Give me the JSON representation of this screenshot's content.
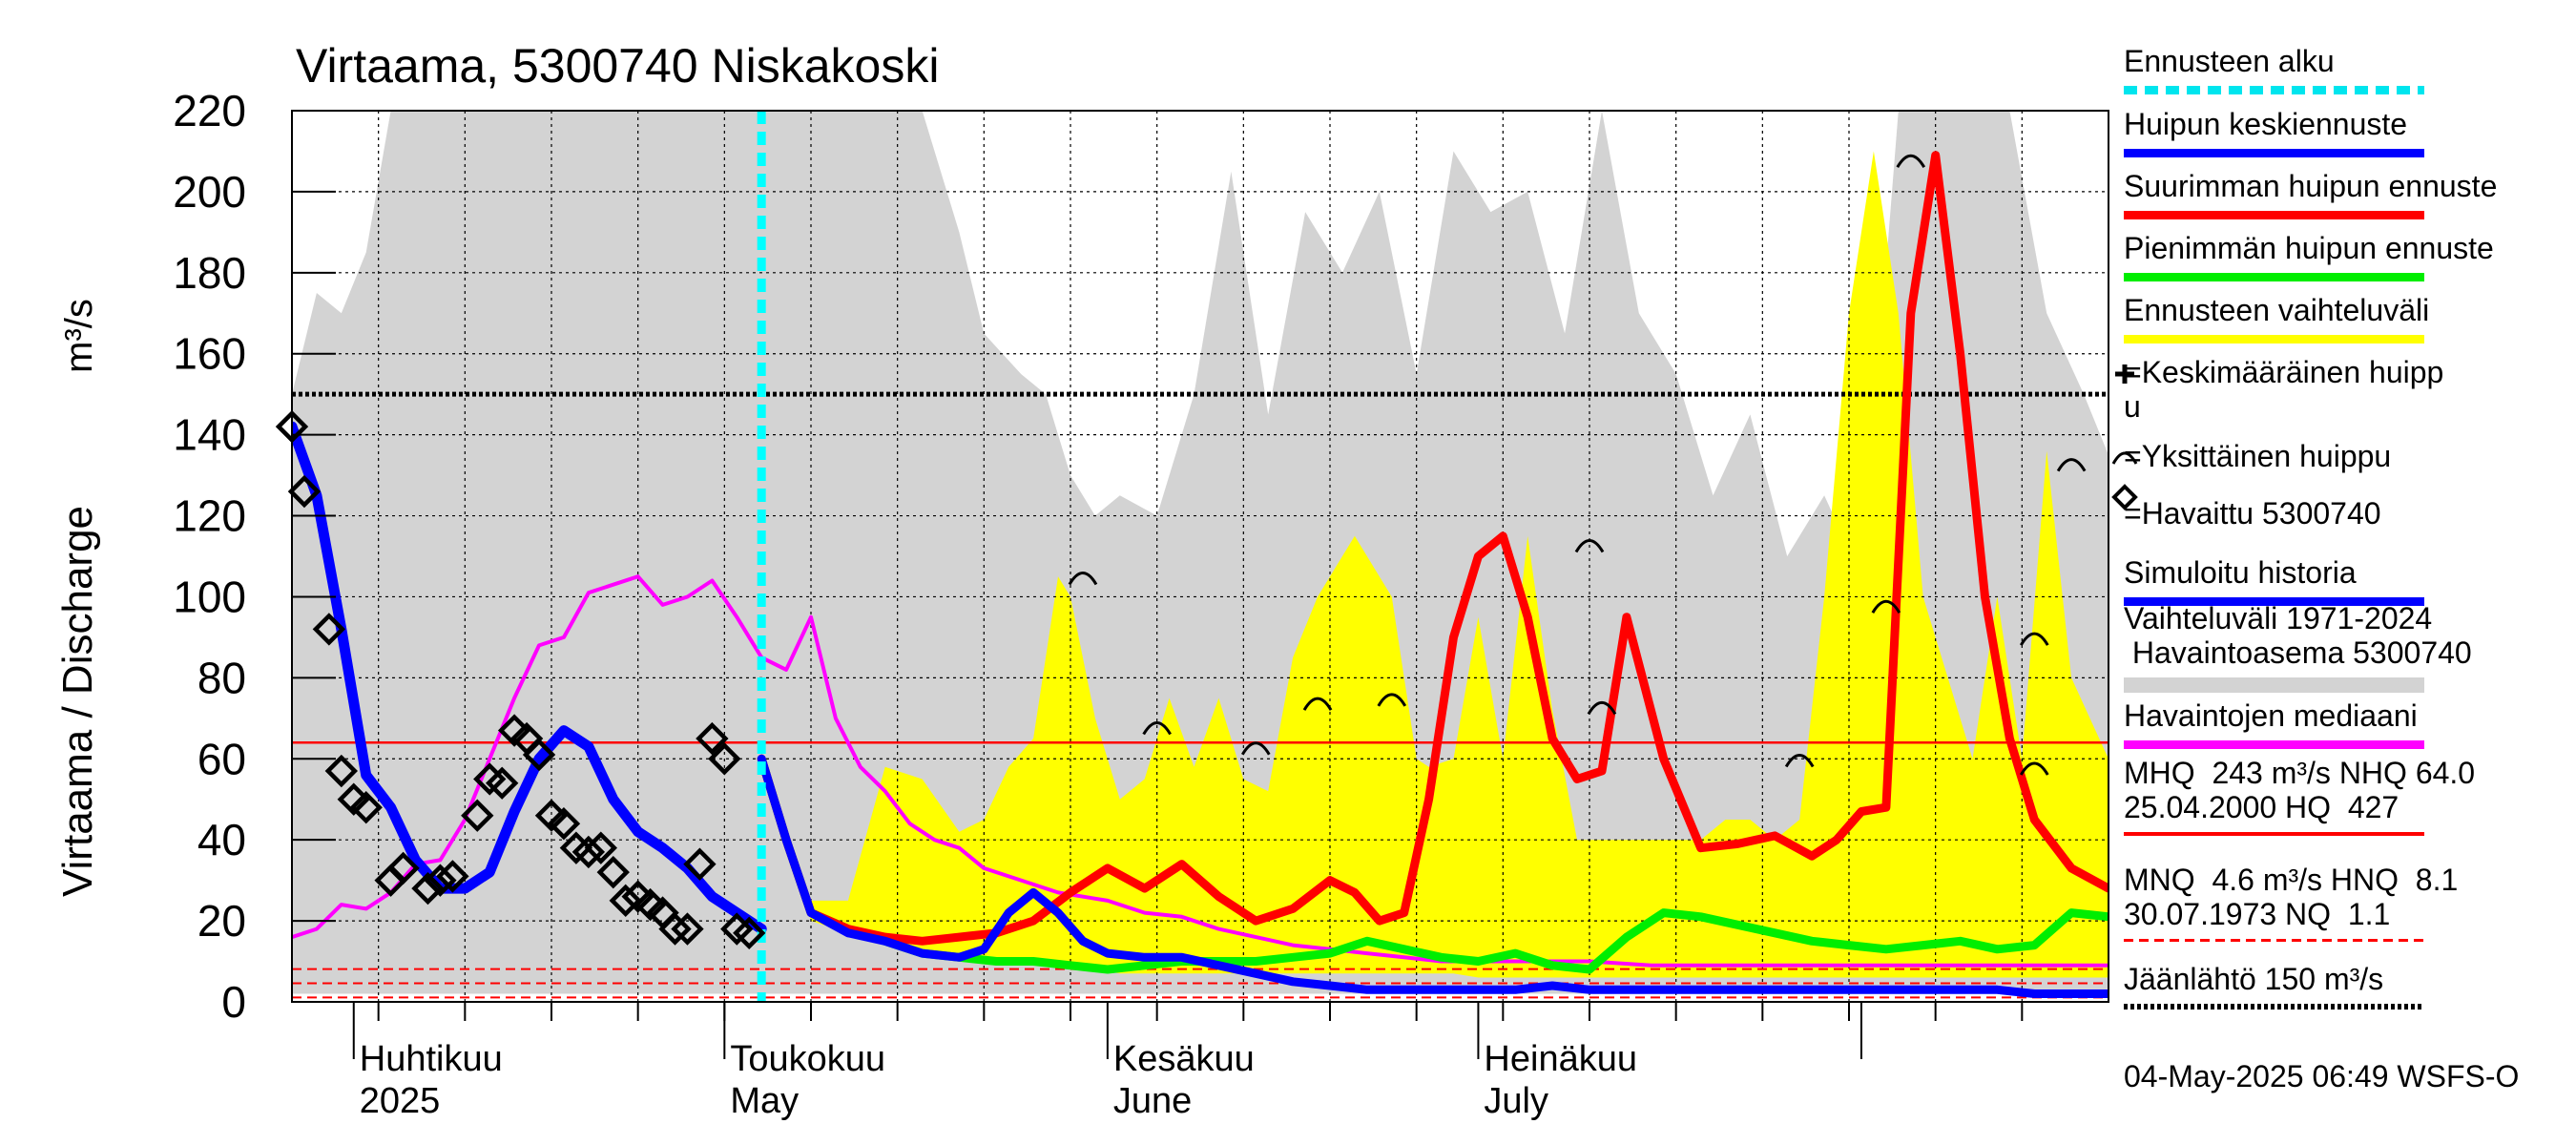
{
  "chart_data": {
    "type": "line",
    "title": "Virtaama, 5300740 Niskakoski",
    "ylabel": "Virtaama / Discharge",
    "yunit": "m³/s",
    "ylim": [
      0,
      220
    ],
    "yticks": [
      0,
      20,
      40,
      60,
      80,
      100,
      120,
      140,
      160,
      180,
      200,
      220
    ],
    "xlim": [
      "2025-03-27",
      "2025-08-21"
    ],
    "month_labels": [
      {
        "date": "2025-04-01",
        "fi": "Huhtikuu",
        "en": "2025"
      },
      {
        "date": "2025-05-01",
        "fi": "Toukokuu",
        "en": "May"
      },
      {
        "date": "2025-06-01",
        "fi": "Kesäkuu",
        "en": "June"
      },
      {
        "date": "2025-07-01",
        "fi": "Heinäkuu",
        "en": "July"
      }
    ],
    "forecast_start": "2025-05-04",
    "hline_jaanlahto": 150,
    "hline_mhq": 64.0,
    "hline_mnq": 8.1,
    "colors": {
      "history_band": "#d3d3d3",
      "forecast_band": "#ffff00",
      "mean_forecast": "#0000ff",
      "max_forecast": "#ff0000",
      "min_forecast": "#00ee00",
      "median": "#ff00ff",
      "simulated": "#0000ff",
      "forecast_start": "#00ffff",
      "reference_lines": "#ff0000"
    },
    "series": [
      {
        "name": "Vaihteluväli 1971-2024",
        "kind": "band",
        "x": [
          "2025-03-27",
          "2025-03-29",
          "2025-03-31",
          "2025-04-02",
          "2025-04-04",
          "2025-04-07",
          "2025-04-10",
          "2025-04-15",
          "2025-04-20",
          "2025-04-25",
          "2025-04-30",
          "2025-05-03",
          "2025-05-06",
          "2025-05-09",
          "2025-05-12",
          "2025-05-15",
          "2025-05-17",
          "2025-05-20",
          "2025-05-22",
          "2025-05-25",
          "2025-05-27",
          "2025-05-29",
          "2025-05-31",
          "2025-06-02",
          "2025-06-05",
          "2025-06-08",
          "2025-06-11",
          "2025-06-14",
          "2025-06-17",
          "2025-06-20",
          "2025-06-23",
          "2025-06-26",
          "2025-06-29",
          "2025-07-02",
          "2025-07-05",
          "2025-07-08",
          "2025-07-11",
          "2025-07-14",
          "2025-07-17",
          "2025-07-20",
          "2025-07-23",
          "2025-07-26",
          "2025-07-29",
          "2025-08-01",
          "2025-08-04",
          "2025-08-07",
          "2025-08-10",
          "2025-08-13",
          "2025-08-16",
          "2025-08-19",
          "2025-08-21"
        ],
        "upper": [
          150,
          175,
          170,
          185,
          220,
          220,
          220,
          220,
          220,
          220,
          220,
          220,
          220,
          220,
          220,
          220,
          220,
          190,
          165,
          155,
          150,
          130,
          120,
          125,
          120,
          150,
          205,
          145,
          195,
          180,
          200,
          155,
          210,
          195,
          200,
          165,
          220,
          170,
          155,
          125,
          145,
          110,
          125,
          105,
          220,
          220,
          220,
          220,
          170,
          150,
          135
        ],
        "lower": [
          2,
          2,
          2,
          2,
          2,
          2,
          2,
          2,
          2,
          2,
          2,
          2,
          2,
          2,
          2,
          2,
          2,
          2,
          2,
          2,
          2,
          2,
          2,
          2,
          2,
          2,
          2,
          2,
          2,
          2,
          2,
          2,
          2,
          2,
          2,
          2,
          2,
          2,
          2,
          2,
          2,
          2,
          2,
          2,
          2,
          2,
          2,
          2,
          2,
          2,
          2
        ]
      },
      {
        "name": "Ennusteen vaihteluväli",
        "kind": "band",
        "x": [
          "2025-05-04",
          "2025-05-08",
          "2025-05-11",
          "2025-05-14",
          "2025-05-17",
          "2025-05-20",
          "2025-05-22",
          "2025-05-24",
          "2025-05-26",
          "2025-05-28",
          "2025-05-29",
          "2025-05-31",
          "2025-06-02",
          "2025-06-04",
          "2025-06-06",
          "2025-06-08",
          "2025-06-10",
          "2025-06-12",
          "2025-06-14",
          "2025-06-16",
          "2025-06-18",
          "2025-06-21",
          "2025-06-24",
          "2025-06-26",
          "2025-06-27",
          "2025-06-29",
          "2025-07-01",
          "2025-07-03",
          "2025-07-05",
          "2025-07-07",
          "2025-07-09",
          "2025-07-11",
          "2025-07-13",
          "2025-07-15",
          "2025-07-17",
          "2025-07-19",
          "2025-07-21",
          "2025-07-23",
          "2025-07-25",
          "2025-07-27",
          "2025-07-29",
          "2025-07-31",
          "2025-08-02",
          "2025-08-04",
          "2025-08-06",
          "2025-08-08",
          "2025-08-10",
          "2025-08-12",
          "2025-08-14",
          "2025-08-16",
          "2025-08-18",
          "2025-08-21"
        ],
        "upper": [
          60,
          25,
          25,
          58,
          55,
          42,
          45,
          58,
          65,
          105,
          100,
          70,
          50,
          55,
          75,
          58,
          75,
          55,
          52,
          85,
          100,
          115,
          100,
          60,
          58,
          60,
          95,
          60,
          115,
          72,
          40,
          40,
          40,
          40,
          40,
          40,
          45,
          45,
          40,
          45,
          100,
          170,
          210,
          170,
          100,
          80,
          60,
          100,
          60,
          136,
          80,
          60
        ],
        "lower": [
          60,
          20,
          17,
          14,
          12,
          11,
          10,
          9,
          9,
          9,
          8,
          8,
          7,
          7,
          7,
          7,
          7,
          7,
          7,
          7,
          7,
          7,
          7,
          7,
          7,
          7,
          6,
          6,
          6,
          6,
          6,
          6,
          6,
          6,
          6,
          6,
          6,
          6,
          6,
          6,
          6,
          6,
          6,
          6,
          6,
          6,
          6,
          6,
          6,
          6,
          6,
          6
        ]
      },
      {
        "name": "Havaintojen mediaani",
        "kind": "line",
        "x": [
          "2025-03-27",
          "2025-03-29",
          "2025-03-31",
          "2025-04-02",
          "2025-04-04",
          "2025-04-06",
          "2025-04-08",
          "2025-04-10",
          "2025-04-12",
          "2025-04-14",
          "2025-04-16",
          "2025-04-18",
          "2025-04-20",
          "2025-04-22",
          "2025-04-24",
          "2025-04-26",
          "2025-04-28",
          "2025-04-30",
          "2025-05-02",
          "2025-05-04",
          "2025-05-06",
          "2025-05-08",
          "2025-05-10",
          "2025-05-12",
          "2025-05-14",
          "2025-05-16",
          "2025-05-18",
          "2025-05-20",
          "2025-05-22",
          "2025-05-25",
          "2025-05-28",
          "2025-06-01",
          "2025-06-04",
          "2025-06-07",
          "2025-06-10",
          "2025-06-13",
          "2025-06-16",
          "2025-06-19",
          "2025-06-22",
          "2025-06-25",
          "2025-06-28",
          "2025-07-01",
          "2025-07-05",
          "2025-07-10",
          "2025-07-15",
          "2025-07-20",
          "2025-07-25",
          "2025-07-30",
          "2025-08-05",
          "2025-08-12",
          "2025-08-21"
        ],
        "values": [
          16,
          18,
          24,
          23,
          27,
          34,
          35,
          45,
          60,
          75,
          88,
          90,
          101,
          103,
          105,
          98,
          100,
          104,
          95,
          85,
          82,
          95,
          70,
          58,
          52,
          44,
          40,
          38,
          33,
          30,
          27,
          25,
          22,
          21,
          18,
          16,
          14,
          13,
          12,
          11,
          10,
          10,
          10,
          10,
          9,
          9,
          9,
          9,
          9,
          9,
          9
        ]
      },
      {
        "name": "Pienimmän huipun ennuste",
        "kind": "line",
        "x": [
          "2025-05-04",
          "2025-05-06",
          "2025-05-08",
          "2025-05-11",
          "2025-05-14",
          "2025-05-17",
          "2025-05-20",
          "2025-05-23",
          "2025-05-26",
          "2025-05-29",
          "2025-06-01",
          "2025-06-04",
          "2025-06-07",
          "2025-06-10",
          "2025-06-13",
          "2025-06-16",
          "2025-06-19",
          "2025-06-22",
          "2025-06-25",
          "2025-06-28",
          "2025-07-01",
          "2025-07-04",
          "2025-07-07",
          "2025-07-10",
          "2025-07-13",
          "2025-07-16",
          "2025-07-19",
          "2025-07-22",
          "2025-07-25",
          "2025-07-28",
          "2025-07-31",
          "2025-08-03",
          "2025-08-06",
          "2025-08-09",
          "2025-08-12",
          "2025-08-15",
          "2025-08-18",
          "2025-08-21"
        ],
        "values": [
          60,
          40,
          22,
          18,
          15,
          12,
          11,
          10,
          10,
          9,
          8,
          9,
          10,
          10,
          10,
          11,
          12,
          15,
          13,
          11,
          10,
          12,
          9,
          8,
          16,
          22,
          21,
          19,
          17,
          15,
          14,
          13,
          14,
          15,
          13,
          14,
          22,
          21
        ]
      },
      {
        "name": "Suurimman huipun ennuste",
        "kind": "line",
        "x": [
          "2025-05-04",
          "2025-05-06",
          "2025-05-08",
          "2025-05-11",
          "2025-05-14",
          "2025-05-17",
          "2025-05-20",
          "2025-05-23",
          "2025-05-26",
          "2025-05-29",
          "2025-06-01",
          "2025-06-04",
          "2025-06-07",
          "2025-06-10",
          "2025-06-13",
          "2025-06-16",
          "2025-06-19",
          "2025-06-21",
          "2025-06-23",
          "2025-06-25",
          "2025-06-27",
          "2025-06-29",
          "2025-07-01",
          "2025-07-03",
          "2025-07-05",
          "2025-07-07",
          "2025-07-09",
          "2025-07-11",
          "2025-07-13",
          "2025-07-16",
          "2025-07-19",
          "2025-07-22",
          "2025-07-25",
          "2025-07-28",
          "2025-07-30",
          "2025-08-01",
          "2025-08-03",
          "2025-08-05",
          "2025-08-07",
          "2025-08-09",
          "2025-08-11",
          "2025-08-13",
          "2025-08-15",
          "2025-08-18",
          "2025-08-21"
        ],
        "values": [
          60,
          40,
          22,
          18,
          16,
          15,
          16,
          17,
          20,
          27,
          33,
          28,
          34,
          26,
          20,
          23,
          30,
          27,
          20,
          22,
          50,
          90,
          110,
          115,
          95,
          65,
          55,
          57,
          95,
          60,
          38,
          39,
          41,
          36,
          40,
          47,
          48,
          170,
          209,
          160,
          100,
          65,
          45,
          33,
          28
        ]
      },
      {
        "name": "Huipun keskiennuste",
        "kind": "line",
        "x": [
          "2025-05-04",
          "2025-05-06",
          "2025-05-08",
          "2025-05-11",
          "2025-05-14",
          "2025-05-17",
          "2025-05-20",
          "2025-05-22",
          "2025-05-24",
          "2025-05-26",
          "2025-05-28",
          "2025-05-30",
          "2025-06-01",
          "2025-06-04",
          "2025-06-07",
          "2025-06-10",
          "2025-06-13",
          "2025-06-16",
          "2025-06-19",
          "2025-06-22",
          "2025-06-25",
          "2025-06-28",
          "2025-07-01",
          "2025-07-04",
          "2025-07-07",
          "2025-07-10",
          "2025-07-13",
          "2025-07-16",
          "2025-07-19",
          "2025-07-22",
          "2025-07-25",
          "2025-07-28",
          "2025-07-31",
          "2025-08-03",
          "2025-08-06",
          "2025-08-09",
          "2025-08-12",
          "2025-08-15",
          "2025-08-18",
          "2025-08-21"
        ],
        "values": [
          60,
          40,
          22,
          17,
          15,
          12,
          11,
          13,
          22,
          27,
          22,
          15,
          12,
          11,
          11,
          9,
          7,
          5,
          4,
          3,
          3,
          3,
          3,
          3,
          4,
          3,
          3,
          3,
          3,
          3,
          3,
          3,
          3,
          3,
          3,
          3,
          3,
          2,
          2,
          2
        ]
      },
      {
        "name": "Simuloitu historia",
        "kind": "line",
        "x": [
          "2025-03-27",
          "2025-03-29",
          "2025-03-31",
          "2025-04-02",
          "2025-04-04",
          "2025-04-06",
          "2025-04-08",
          "2025-04-10",
          "2025-04-12",
          "2025-04-14",
          "2025-04-16",
          "2025-04-18",
          "2025-04-20",
          "2025-04-22",
          "2025-04-24",
          "2025-04-26",
          "2025-04-28",
          "2025-04-30",
          "2025-05-02",
          "2025-05-04"
        ],
        "values": [
          142,
          125,
          92,
          56,
          48,
          35,
          28,
          28,
          32,
          47,
          60,
          67,
          63,
          50,
          42,
          38,
          33,
          26,
          22,
          18
        ]
      },
      {
        "name": "Havaittu 5300740",
        "kind": "scatter",
        "x": [
          "2025-03-27",
          "2025-03-28",
          "2025-03-30",
          "2025-03-31",
          "2025-04-01",
          "2025-04-02",
          "2025-04-04",
          "2025-04-05",
          "2025-04-07",
          "2025-04-08",
          "2025-04-09",
          "2025-04-11",
          "2025-04-12",
          "2025-04-13",
          "2025-04-14",
          "2025-04-15",
          "2025-04-16",
          "2025-04-17",
          "2025-04-18",
          "2025-04-19",
          "2025-04-20",
          "2025-04-21",
          "2025-04-22",
          "2025-04-23",
          "2025-04-24",
          "2025-04-25",
          "2025-04-26",
          "2025-04-27",
          "2025-04-28",
          "2025-04-29",
          "2025-04-30",
          "2025-05-01",
          "2025-05-02",
          "2025-05-03"
        ],
        "values": [
          142,
          126,
          92,
          57,
          50,
          48,
          30,
          33,
          28,
          30,
          31,
          46,
          55,
          54,
          67,
          65,
          61,
          46,
          44,
          38,
          37,
          38,
          32,
          25,
          26,
          24,
          22,
          18,
          18,
          34,
          65,
          60,
          18,
          17
        ]
      }
    ],
    "single_peaks": [
      {
        "date": "2025-05-30",
        "value": 104
      },
      {
        "date": "2025-06-05",
        "value": 67
      },
      {
        "date": "2025-06-13",
        "value": 62
      },
      {
        "date": "2025-06-18",
        "value": 73
      },
      {
        "date": "2025-06-24",
        "value": 74
      },
      {
        "date": "2025-07-10",
        "value": 112
      },
      {
        "date": "2025-07-11",
        "value": 72
      },
      {
        "date": "2025-07-27",
        "value": 59
      },
      {
        "date": "2025-08-03",
        "value": 97
      },
      {
        "date": "2025-08-05",
        "value": 207
      },
      {
        "date": "2025-08-15",
        "value": 89
      },
      {
        "date": "2025-08-15",
        "value": 57
      },
      {
        "date": "2025-08-18",
        "value": 132
      }
    ]
  },
  "legend": {
    "items": [
      {
        "label": "Ennusteen alku",
        "color": "#00e5ee",
        "style": "dashed"
      },
      {
        "label": "Huipun keskiennuste",
        "color": "#0000ff",
        "style": "solid"
      },
      {
        "label": "Suurimman huipun ennuste",
        "color": "#ff0000",
        "style": "solid"
      },
      {
        "label": "Pienimmän huipun ennuste",
        "color": "#00ee00",
        "style": "solid"
      },
      {
        "label": "Ennusteen vaihteluväli",
        "color": "#ffff00",
        "style": "solid"
      },
      {
        "label": "=Keskimääräinen huipp\nu",
        "color": "",
        "style": "none"
      },
      {
        "label": "=Yksittäinen huippu",
        "color": "",
        "style": "none"
      },
      {
        "label": "=Havaittu 5300740",
        "color": "",
        "style": "none"
      },
      {
        "label": "Simuloitu historia",
        "color": "#0000ff",
        "style": "solid"
      },
      {
        "label": "Vaihteluväli 1971-2024\n Havaintoasema 5300740",
        "color": "#d3d3d3",
        "style": "thick"
      },
      {
        "label": "Havaintojen mediaani",
        "color": "#ff00ff",
        "style": "solid"
      },
      {
        "label": "MHQ  243 m³/s NHQ 64.0\n25.04.2000 HQ  427",
        "color": "#ff0000",
        "style": "thin"
      },
      {
        "label": "MNQ  4.6 m³/s HNQ  8.1\n30.07.1973 NQ  1.1",
        "color": "#ff0000",
        "style": "dashed-thin"
      },
      {
        "label": "Jäänlähtö 150 m³/s",
        "color": "#000000",
        "style": "dotted"
      }
    ]
  },
  "footer": {
    "timestamp": "04-May-2025 06:49 WSFS-O"
  }
}
